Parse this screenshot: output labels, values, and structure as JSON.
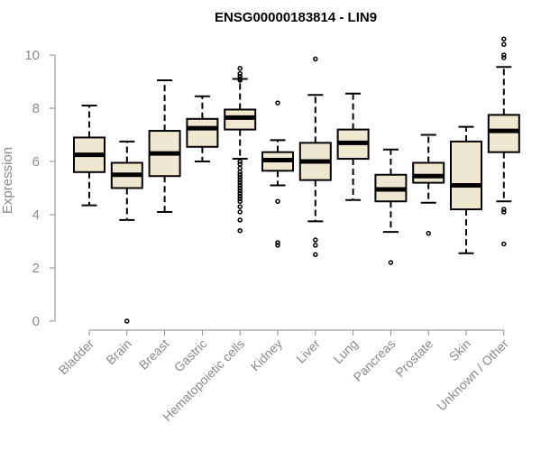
{
  "chart_data": {
    "type": "boxplot",
    "title": "ENSG00000183814 - LIN9",
    "xlabel": "",
    "ylabel": "Expression",
    "ylim": [
      0,
      10
    ],
    "yticks": [
      0,
      2,
      4,
      6,
      8,
      10
    ],
    "grid": false,
    "box_color": "#efe8d0",
    "categories": [
      "Bladder",
      "Brain",
      "Breast",
      "Gastric",
      "Hematopoietic cells",
      "Kidney",
      "Liver",
      "Lung",
      "Pancreas",
      "Prostate",
      "Skin",
      "Unknown / Other"
    ],
    "boxes": [
      {
        "whisker_low": 4.35,
        "q1": 5.6,
        "median": 6.25,
        "q3": 6.9,
        "whisker_high": 8.1,
        "outliers": []
      },
      {
        "whisker_low": 3.8,
        "q1": 5.0,
        "median": 5.5,
        "q3": 5.95,
        "whisker_high": 6.75,
        "outliers": [
          0.0
        ]
      },
      {
        "whisker_low": 4.1,
        "q1": 5.45,
        "median": 6.3,
        "q3": 7.15,
        "whisker_high": 9.05,
        "outliers": []
      },
      {
        "whisker_low": 6.0,
        "q1": 6.55,
        "median": 7.25,
        "q3": 7.6,
        "whisker_high": 8.45,
        "outliers": []
      },
      {
        "whisker_low": 6.1,
        "q1": 7.2,
        "median": 7.65,
        "q3": 7.95,
        "whisker_high": 9.1,
        "outliers": [
          9.5,
          9.3,
          9.2,
          9.1,
          9.05,
          6.0,
          5.9,
          5.75,
          5.6,
          5.5,
          5.4,
          5.3,
          5.2,
          5.1,
          5.0,
          4.9,
          4.8,
          4.7,
          4.6,
          4.5,
          4.3,
          4.1,
          3.8,
          3.4
        ]
      },
      {
        "whisker_low": 5.1,
        "q1": 5.65,
        "median": 6.05,
        "q3": 6.35,
        "whisker_high": 6.8,
        "outliers": [
          8.2,
          4.5,
          2.95,
          2.85
        ]
      },
      {
        "whisker_low": 3.75,
        "q1": 5.3,
        "median": 6.0,
        "q3": 6.7,
        "whisker_high": 8.5,
        "outliers": [
          9.85,
          3.05,
          2.85,
          2.5
        ]
      },
      {
        "whisker_low": 4.55,
        "q1": 6.1,
        "median": 6.7,
        "q3": 7.2,
        "whisker_high": 8.55,
        "outliers": []
      },
      {
        "whisker_low": 3.35,
        "q1": 4.5,
        "median": 4.95,
        "q3": 5.5,
        "whisker_high": 6.45,
        "outliers": [
          2.2
        ]
      },
      {
        "whisker_low": 4.45,
        "q1": 5.2,
        "median": 5.45,
        "q3": 5.95,
        "whisker_high": 7.0,
        "outliers": [
          3.3
        ]
      },
      {
        "whisker_low": 2.55,
        "q1": 4.2,
        "median": 5.1,
        "q3": 6.75,
        "whisker_high": 7.3,
        "outliers": []
      },
      {
        "whisker_low": 4.5,
        "q1": 6.35,
        "median": 7.15,
        "q3": 7.75,
        "whisker_high": 9.55,
        "outliers": [
          10.6,
          10.4,
          10.0,
          9.9,
          4.2,
          4.1,
          2.9
        ]
      }
    ]
  }
}
